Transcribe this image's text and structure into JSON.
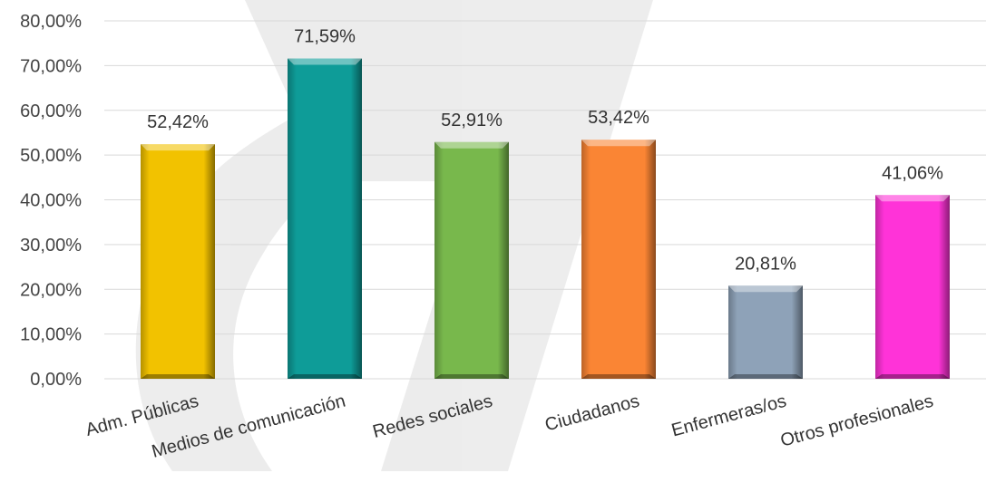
{
  "chart_data": {
    "type": "bar",
    "categories": [
      "Adm. Públicas",
      "Medios de comunicación",
      "Redes sociales",
      "Ciudadanos",
      "Enfermeras/os",
      "Otros profesionales"
    ],
    "values": [
      52.42,
      71.59,
      52.91,
      53.42,
      20.81,
      41.06
    ],
    "data_labels": [
      "52,42%",
      "71,59%",
      "52,91%",
      "53,42%",
      "20,81%",
      "41,06%"
    ],
    "colors": [
      "#F2C200",
      "#0E9C98",
      "#78B84C",
      "#FA8534",
      "#8EA2B8",
      "#FF33D8"
    ],
    "ylim": [
      0,
      80
    ],
    "y_ticks": [
      0,
      10,
      20,
      30,
      40,
      50,
      60,
      70,
      80
    ],
    "y_tick_labels": [
      "0,00%",
      "10,00%",
      "20,00%",
      "30,00%",
      "40,00%",
      "50,00%",
      "60,00%",
      "70,00%",
      "80,00%"
    ],
    "grid": true,
    "title": "",
    "xlabel": "",
    "ylabel": ""
  }
}
